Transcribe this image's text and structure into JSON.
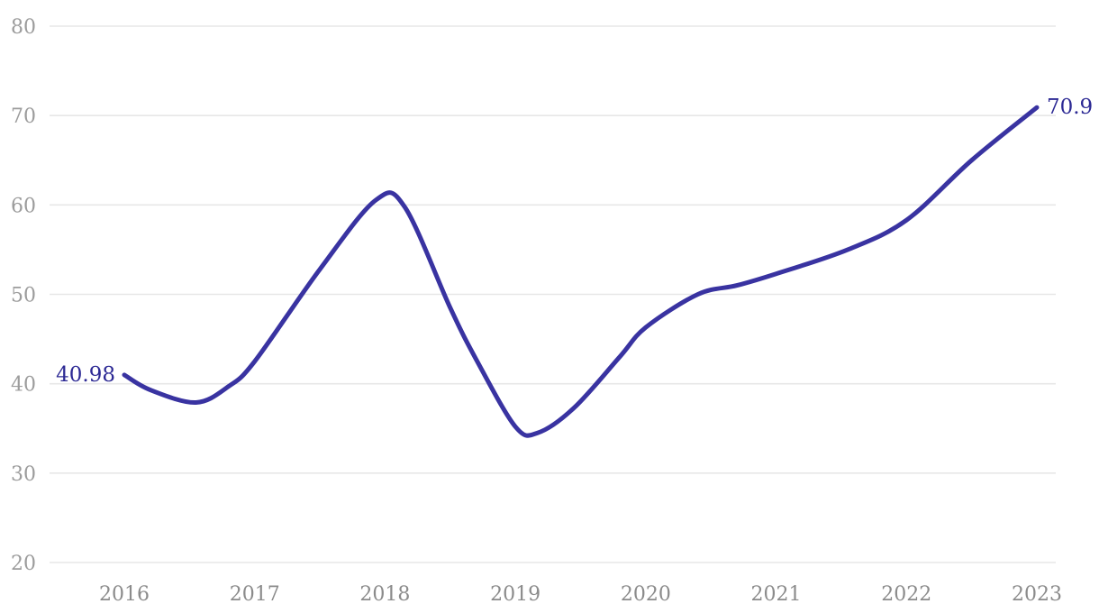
{
  "style": {
    "background": "#ffffff",
    "line_color": "#3933a1",
    "annotation_color": "#2c2994",
    "grid_color": "#e7e7e7",
    "y_tick_color": "#9c9c9c",
    "x_tick_color": "#8b8b8b"
  },
  "chart_data": {
    "type": "line",
    "title": "",
    "xlabel": "",
    "ylabel": "",
    "legend": "none",
    "grid": "horizontal-only",
    "categories": [
      "2016",
      "2017",
      "2018",
      "2019",
      "2020",
      "2021",
      "2022",
      "2023"
    ],
    "values": [
      40.98,
      42.5,
      60.4,
      35.1,
      46.3,
      52.3,
      58.3,
      70.9
    ],
    "y_ticks": [
      80,
      70,
      60,
      50,
      40,
      30,
      20
    ],
    "ylim": [
      20,
      80
    ],
    "xlim": [
      2016,
      2023
    ],
    "annotations": {
      "start": {
        "year": 2016,
        "value": 40.98,
        "text": "40.98"
      },
      "end": {
        "year": 2023,
        "value": 70.9,
        "text": "70.9"
      }
    },
    "curve_samples": [
      [
        2016.0,
        40.98
      ],
      [
        2016.2,
        39.3
      ],
      [
        2016.55,
        37.9
      ],
      [
        2016.8,
        39.7
      ],
      [
        2017.0,
        42.5
      ],
      [
        2017.5,
        52.8
      ],
      [
        2017.93,
        60.55
      ],
      [
        2018.15,
        59.8
      ],
      [
        2018.5,
        48.5
      ],
      [
        2018.7,
        42.7
      ],
      [
        2019.0,
        35.2
      ],
      [
        2019.17,
        34.5
      ],
      [
        2019.45,
        37.3
      ],
      [
        2019.8,
        43.0
      ],
      [
        2020.0,
        46.3
      ],
      [
        2020.4,
        50.0
      ],
      [
        2020.7,
        51.0
      ],
      [
        2021.0,
        52.3
      ],
      [
        2021.55,
        55.0
      ],
      [
        2022.0,
        58.3
      ],
      [
        2022.5,
        65.0
      ],
      [
        2023.0,
        70.9
      ]
    ]
  }
}
